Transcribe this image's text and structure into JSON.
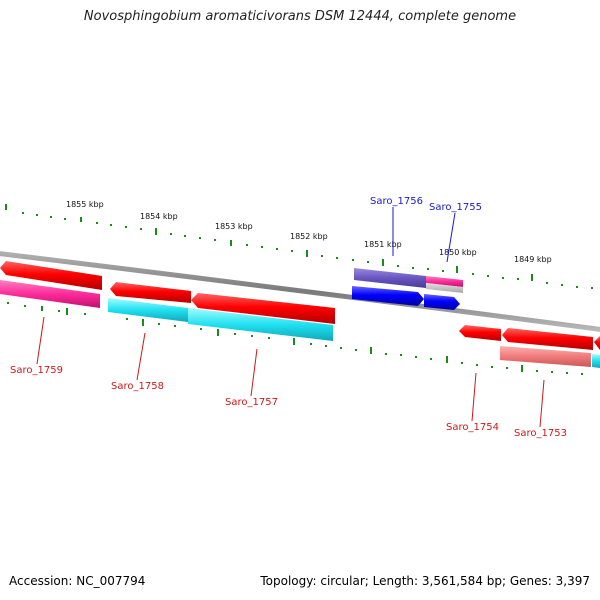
{
  "header": {
    "title": "Novosphingobium aromaticivorans DSM 12444, complete genome"
  },
  "footer": {
    "accession": "Accession: NC_007794",
    "summary": "Topology: circular; Length: 3,561,584 bp; Genes: 3,397"
  },
  "scale": {
    "ticks": [
      "1855 kbp",
      "1854 kbp",
      "1853 kbp",
      "1852 kbp",
      "1851 kbp",
      "1850 kbp",
      "1849 kbp"
    ]
  },
  "genes": [
    {
      "name": "Saro_1759",
      "strand": "reverse",
      "color": "#ff1a1a",
      "cds_color": "#ff3399"
    },
    {
      "name": "Saro_1758",
      "strand": "reverse",
      "color": "#ff1a1a",
      "cds_color": "#33e6ee"
    },
    {
      "name": "Saro_1757",
      "strand": "reverse",
      "color": "#ff1a1a",
      "cds_color": "#33e6ee"
    },
    {
      "name": "Saro_1756",
      "strand": "forward",
      "color": "#1a1aff",
      "cds_color": "#7a66cc"
    },
    {
      "name": "Saro_1755",
      "strand": "forward",
      "color": "#1a1aff",
      "cds_color": "#ff3399"
    },
    {
      "name": "Saro_1754",
      "strand": "reverse",
      "color": "#ff1a1a",
      "cds_color": ""
    },
    {
      "name": "Saro_1753",
      "strand": "reverse",
      "color": "#ff1a1a",
      "cds_color": "#f08080"
    }
  ],
  "colors": {
    "backbone": "#888888",
    "tick": "#1a8a1a",
    "forward_label": "#1a1acc",
    "reverse_label": "#cc1a1a"
  }
}
